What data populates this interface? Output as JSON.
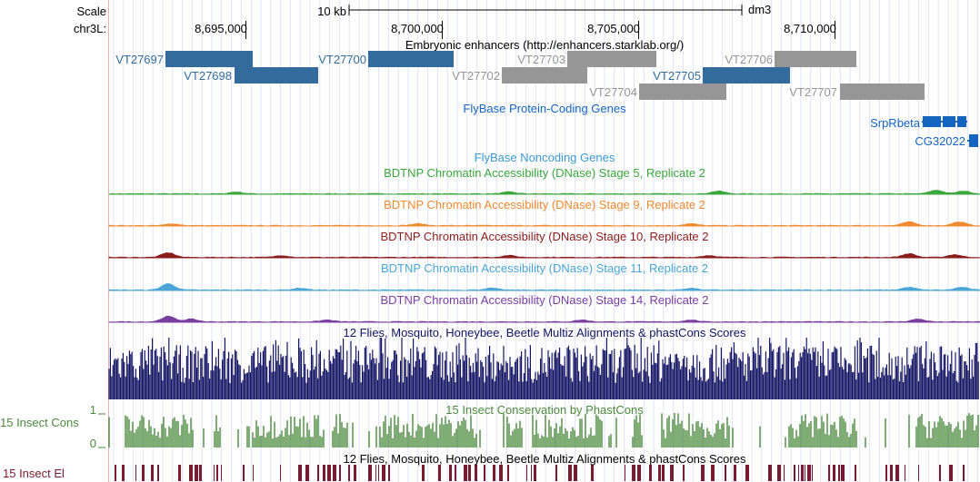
{
  "ruler": {
    "scale_label": "Scale",
    "chrom_label": "chr3L:",
    "scale_text": "10 kb",
    "assembly": "dm3",
    "ticks": [
      "8,695,000",
      "8,700,000",
      "8,705,000",
      "8,710,000"
    ]
  },
  "colors": {
    "enhancer_dark": "#336c9c",
    "enhancer_gray": "#969696",
    "genes": "#1565c0",
    "noncoding": "#3c9ad6",
    "stage5": "#3ca83c",
    "stage9": "#f28a31",
    "stage10": "#8b1c1c",
    "stage11": "#4aa6d6",
    "stage14": "#7a3ea0",
    "multiz": "#141464",
    "phastcons": "#4a8a3a",
    "elements": "#7a1a30"
  },
  "tracks": {
    "enhancers": {
      "title": "Embryonic enhancers (http://enhancers.starklab.org/)",
      "items": [
        {
          "id": "VT27697",
          "tone": "dark"
        },
        {
          "id": "VT27698",
          "tone": "dark"
        },
        {
          "id": "VT27700",
          "tone": "dark"
        },
        {
          "id": "VT27702",
          "tone": "gray"
        },
        {
          "id": "VT27703",
          "tone": "gray"
        },
        {
          "id": "VT27704",
          "tone": "gray"
        },
        {
          "id": "VT27705",
          "tone": "dark"
        },
        {
          "id": "VT27706",
          "tone": "gray"
        },
        {
          "id": "VT27707",
          "tone": "gray"
        }
      ]
    },
    "genes": {
      "title": "FlyBase Protein-Coding Genes",
      "items": [
        "SrpRbeta",
        "CG32022"
      ]
    },
    "noncoding": {
      "title": "FlyBase Noncoding Genes"
    },
    "dnase": [
      {
        "title": "BDTNP Chromatin Accessibility (DNase) Stage 5, Replicate 2"
      },
      {
        "title": "BDTNP Chromatin Accessibility (DNase) Stage 9, Replicate 2"
      },
      {
        "title": "BDTNP Chromatin Accessibility (DNase) Stage 10, Replicate 2"
      },
      {
        "title": "BDTNP Chromatin Accessibility (DNase) Stage 11, Replicate 2"
      },
      {
        "title": "BDTNP Chromatin Accessibility (DNase) Stage 14, Replicate 2"
      }
    ],
    "multiz": {
      "title": "12 Flies, Mosquito, Honeybee, Beetle Multiz Alignments & phastCons Scores"
    },
    "phastcons": {
      "title": "15 Insect Conservation by PhastCons",
      "side_label": "15 Insect Cons",
      "max": "1",
      "min": "0"
    },
    "elements": {
      "title": "12 Flies, Mosquito, Honeybee, Beetle Multiz Alignments & phastCons Scores",
      "side_label": "15 Insect El"
    }
  }
}
